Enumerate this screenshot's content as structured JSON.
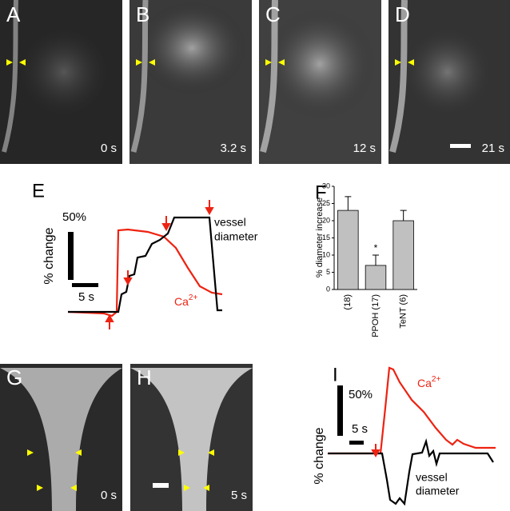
{
  "panels": {
    "a": {
      "letter": "A",
      "time": "0 s"
    },
    "b": {
      "letter": "B",
      "time": "3.2 s"
    },
    "c": {
      "letter": "C",
      "time": "12 s"
    },
    "d": {
      "letter": "D",
      "time": "21 s"
    },
    "e": {
      "letter": "E",
      "ylabel": "% change",
      "yscale": "50%",
      "xscale": "5 s",
      "vessel": [
        "vessel",
        "diameter"
      ],
      "ca": {
        "base": "Ca",
        "sup": "2+"
      }
    },
    "g": {
      "letter": "G",
      "time": "0 s"
    },
    "h": {
      "letter": "H",
      "time": "5 s"
    },
    "i": {
      "letter": "I",
      "ylabel": "% change",
      "yscale": "50%",
      "xscale": "5 s",
      "vessel": [
        "vessel",
        "diameter"
      ],
      "ca": {
        "base": "Ca",
        "sup": "2+"
      }
    }
  },
  "chart_data": {
    "type": "bar",
    "letter": "F",
    "ylabel": "% diameter increase",
    "categories": [
      "(18)",
      "PPOH (17)",
      "TeNT (6)"
    ],
    "values": [
      23,
      7,
      20
    ],
    "errors": [
      4,
      3,
      3
    ],
    "color": "#c0c0c0",
    "annotation": "*",
    "ylim": [
      0,
      30
    ],
    "yticks": [
      0,
      5,
      10,
      15,
      20,
      25,
      30
    ]
  }
}
